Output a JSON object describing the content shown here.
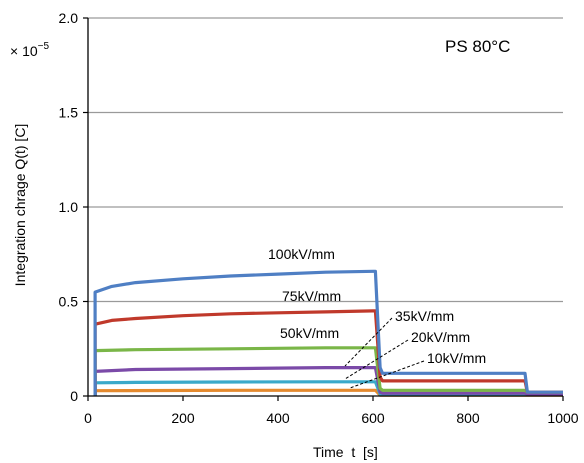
{
  "chart_data": {
    "type": "line",
    "title": "",
    "annotation": "PS  80°C",
    "xlabel": "Time  t  [s]",
    "ylabel": "Integration chrage Q(t)  [C]",
    "y_multiplier": "× 10",
    "y_multiplier_exp": "−5",
    "xlim": [
      0,
      1000
    ],
    "ylim": [
      0,
      2.0
    ],
    "x_ticks": [
      0,
      200,
      400,
      600,
      800,
      1000
    ],
    "y_ticks": [
      0,
      0.5,
      1.0,
      1.5,
      2.0
    ],
    "x_tick_labels": [
      "0",
      "200",
      "400",
      "600",
      "800",
      "1000"
    ],
    "y_tick_labels": [
      "0",
      "0.5",
      "1.0",
      "1.5",
      "2.0"
    ],
    "grid": "horizontal",
    "series": [
      {
        "name": "100kV/mm",
        "color": "#4f7fc4",
        "x": [
          15,
          15,
          50,
          100,
          200,
          300,
          400,
          500,
          600,
          605,
          615,
          620,
          700,
          800,
          920,
          925,
          1000
        ],
        "y": [
          0.0,
          0.55,
          0.58,
          0.6,
          0.62,
          0.635,
          0.645,
          0.655,
          0.66,
          0.66,
          0.15,
          0.12,
          0.12,
          0.12,
          0.12,
          0.02,
          0.02
        ]
      },
      {
        "name": "75kV/mm",
        "color": "#c0392b",
        "x": [
          15,
          15,
          50,
          100,
          200,
          300,
          400,
          500,
          600,
          605,
          615,
          620,
          700,
          800,
          920,
          925,
          1000
        ],
        "y": [
          0.0,
          0.38,
          0.4,
          0.41,
          0.425,
          0.435,
          0.44,
          0.445,
          0.45,
          0.45,
          0.1,
          0.08,
          0.08,
          0.08,
          0.08,
          0.02,
          0.02
        ]
      },
      {
        "name": "50kV/mm",
        "color": "#7ab648",
        "x": [
          15,
          15,
          100,
          300,
          500,
          600,
          605,
          615,
          620,
          800,
          920,
          925,
          1000
        ],
        "y": [
          0.0,
          0.24,
          0.245,
          0.25,
          0.255,
          0.255,
          0.255,
          0.04,
          0.03,
          0.03,
          0.03,
          0.02,
          0.02
        ]
      },
      {
        "name": "35kV/mm",
        "color": "#7b4aa8",
        "x": [
          15,
          15,
          100,
          300,
          500,
          600,
          605,
          615,
          620,
          800,
          920,
          925,
          1000
        ],
        "y": [
          0.0,
          0.13,
          0.14,
          0.145,
          0.15,
          0.15,
          0.15,
          0.02,
          0.015,
          0.015,
          0.015,
          0.01,
          0.01
        ]
      },
      {
        "name": "20kV/mm",
        "color": "#3aa9c9",
        "x": [
          15,
          15,
          100,
          300,
          500,
          600,
          605,
          615,
          620,
          800,
          920,
          925,
          1000
        ],
        "y": [
          0.0,
          0.07,
          0.072,
          0.074,
          0.075,
          0.075,
          0.075,
          0.01,
          0.008,
          0.008,
          0.008,
          0.006,
          0.006
        ]
      },
      {
        "name": "10kV/mm",
        "color": "#e58a2e",
        "x": [
          15,
          15,
          300,
          600,
          605,
          615,
          620,
          920,
          1000
        ],
        "y": [
          0.0,
          0.028,
          0.03,
          0.03,
          0.03,
          0.005,
          0.004,
          0.004,
          0.004
        ]
      }
    ],
    "labels": [
      "100kV/mm",
      "75kV/mm",
      "50kV/mm",
      "35kV/mm",
      "20kV/mm",
      "10kV/mm"
    ]
  }
}
